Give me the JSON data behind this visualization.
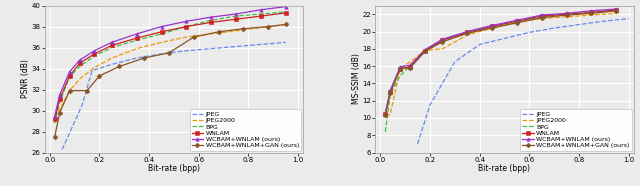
{
  "xlabel": "Bit-rate (bpp)",
  "ylabel_left": "PSNR (dB)",
  "ylabel_right": "MS-SSIM (dB)",
  "psnr": {
    "JPEG": {
      "x": [
        0.05,
        0.13,
        0.17,
        0.25,
        0.35,
        0.45,
        0.55,
        0.65,
        0.75,
        0.85,
        0.95
      ],
      "y": [
        26.3,
        30.5,
        33.8,
        34.4,
        35.0,
        35.4,
        35.7,
        35.9,
        36.1,
        36.3,
        36.5
      ],
      "color": "#6688ee",
      "linestyle": "--",
      "marker": null
    },
    "JPEG2000": {
      "x": [
        0.02,
        0.04,
        0.08,
        0.12,
        0.18,
        0.25,
        0.35,
        0.45,
        0.55,
        0.65,
        0.75,
        0.85,
        0.95
      ],
      "y": [
        29.3,
        30.1,
        31.9,
        33.0,
        34.1,
        35.0,
        35.9,
        36.5,
        37.0,
        37.3,
        37.6,
        37.9,
        38.2
      ],
      "color": "#ee9900",
      "linestyle": "--",
      "marker": null
    },
    "BPG": {
      "x": [
        0.02,
        0.04,
        0.08,
        0.12,
        0.18,
        0.25,
        0.35,
        0.45,
        0.55,
        0.65,
        0.75,
        0.85,
        0.95
      ],
      "y": [
        28.8,
        30.8,
        33.2,
        34.2,
        35.2,
        36.0,
        36.7,
        37.3,
        38.0,
        38.6,
        39.0,
        39.2,
        39.4
      ],
      "color": "#44bb44",
      "linestyle": "--",
      "marker": null
    },
    "WNLAM": {
      "x": [
        0.02,
        0.04,
        0.08,
        0.12,
        0.18,
        0.25,
        0.35,
        0.45,
        0.55,
        0.65,
        0.75,
        0.85,
        0.95
      ],
      "y": [
        29.2,
        31.1,
        33.3,
        34.5,
        35.4,
        36.2,
        36.9,
        37.5,
        38.0,
        38.4,
        38.7,
        39.0,
        39.3
      ],
      "color": "#cc2222",
      "linestyle": "-",
      "marker": "s"
    },
    "WCBAM+WNLAM": {
      "x": [
        0.02,
        0.04,
        0.08,
        0.12,
        0.18,
        0.25,
        0.35,
        0.45,
        0.55,
        0.65,
        0.75,
        0.85,
        0.95
      ],
      "y": [
        29.5,
        31.5,
        33.7,
        34.8,
        35.7,
        36.5,
        37.3,
        38.0,
        38.5,
        38.9,
        39.2,
        39.6,
        39.9
      ],
      "color": "#9933cc",
      "linestyle": "-",
      "marker": "^"
    },
    "WCBAM+WNLAM+GAN": {
      "x": [
        0.02,
        0.04,
        0.08,
        0.15,
        0.2,
        0.28,
        0.38,
        0.48,
        0.58,
        0.68,
        0.78,
        0.88,
        0.95
      ],
      "y": [
        27.5,
        29.8,
        31.9,
        31.9,
        33.3,
        34.2,
        35.0,
        35.5,
        37.0,
        37.5,
        37.8,
        38.0,
        38.2
      ],
      "color": "#885522",
      "linestyle": "-",
      "marker": "D"
    }
  },
  "msssim": {
    "JPEG": {
      "x": [
        0.15,
        0.2,
        0.3,
        0.4,
        0.5,
        0.6,
        0.7,
        0.8,
        0.9,
        1.0
      ],
      "y": [
        7.0,
        11.5,
        16.5,
        18.5,
        19.2,
        19.9,
        20.4,
        20.8,
        21.2,
        21.5
      ],
      "color": "#6688ee",
      "linestyle": "--",
      "marker": null
    },
    "JPEG2000": {
      "x": [
        0.02,
        0.04,
        0.08,
        0.12,
        0.18,
        0.25,
        0.35,
        0.45,
        0.55,
        0.65,
        0.75,
        0.85,
        0.95
      ],
      "y": [
        10.3,
        10.4,
        15.7,
        16.5,
        17.8,
        18.0,
        19.6,
        20.4,
        21.1,
        21.5,
        21.7,
        21.9,
        22.1
      ],
      "color": "#ee9900",
      "linestyle": "--",
      "marker": null
    },
    "BPG": {
      "x": [
        0.02,
        0.04,
        0.08,
        0.12,
        0.18,
        0.25,
        0.35,
        0.45,
        0.55,
        0.65,
        0.75,
        0.85,
        0.95
      ],
      "y": [
        8.4,
        12.7,
        14.9,
        16.0,
        17.8,
        18.9,
        19.8,
        20.5,
        21.1,
        21.7,
        22.0,
        22.2,
        22.4
      ],
      "color": "#44bb44",
      "linestyle": "--",
      "marker": null
    },
    "WNLAM": {
      "x": [
        0.02,
        0.04,
        0.08,
        0.12,
        0.18,
        0.25,
        0.35,
        0.45,
        0.55,
        0.65,
        0.75,
        0.85,
        0.95
      ],
      "y": [
        10.4,
        13.0,
        15.7,
        15.9,
        17.8,
        19.0,
        19.9,
        20.6,
        21.2,
        21.8,
        22.0,
        22.2,
        22.5
      ],
      "color": "#cc2222",
      "linestyle": "-",
      "marker": "s"
    },
    "WCBAM+WNLAM": {
      "x": [
        0.02,
        0.04,
        0.08,
        0.12,
        0.18,
        0.25,
        0.35,
        0.45,
        0.55,
        0.65,
        0.75,
        0.85,
        0.95
      ],
      "y": [
        10.5,
        13.2,
        15.9,
        16.1,
        17.9,
        19.1,
        20.0,
        20.7,
        21.3,
        21.9,
        22.1,
        22.4,
        22.6
      ],
      "color": "#9933cc",
      "linestyle": "-",
      "marker": "^"
    },
    "WCBAM+WNLAM+GAN": {
      "x": [
        0.02,
        0.04,
        0.08,
        0.12,
        0.18,
        0.25,
        0.35,
        0.45,
        0.55,
        0.65,
        0.75,
        0.85,
        0.95
      ],
      "y": [
        10.3,
        12.9,
        15.7,
        15.8,
        17.7,
        18.8,
        19.8,
        20.4,
        21.0,
        21.6,
        21.9,
        22.1,
        22.4
      ],
      "color": "#885522",
      "linestyle": "-",
      "marker": "D"
    }
  },
  "legend_labels": [
    "JPEG",
    "JPEG2000",
    "BPG",
    "WNLAM",
    "WCBAM+WNLAM (ours)",
    "WCBAM+WNLAM+GAN (ours)"
  ],
  "legend_keys": [
    "JPEG",
    "JPEG2000",
    "BPG",
    "WNLAM",
    "WCBAM+WNLAM",
    "WCBAM+WNLAM+GAN"
  ],
  "xlim": [
    -0.02,
    1.02
  ],
  "psnr_ylim": [
    26,
    40
  ],
  "msssim_ylim": [
    6,
    23
  ],
  "psnr_yticks": [
    26,
    28,
    30,
    32,
    34,
    36,
    38,
    40
  ],
  "msssim_yticks": [
    6,
    8,
    10,
    12,
    14,
    16,
    18,
    20,
    22
  ],
  "xticks": [
    0.0,
    0.2,
    0.4,
    0.6,
    0.8,
    1.0
  ],
  "background_color": "#ebebeb",
  "grid_color": "#ffffff",
  "fontsize": 5.5,
  "marker_size": 2.5,
  "linewidth": 0.9
}
